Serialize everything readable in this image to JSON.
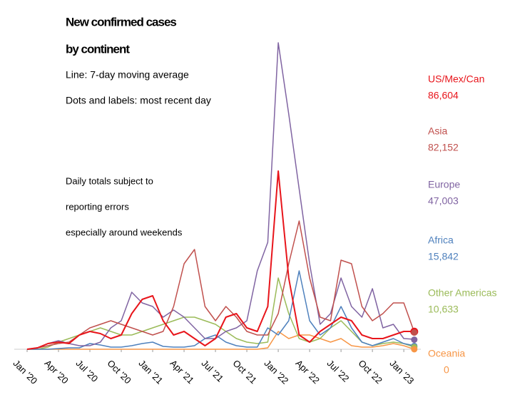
{
  "chart_data": {
    "type": "line",
    "title_lines": [
      "New confirmed cases",
      "by continent"
    ],
    "subtitle_lines": [
      "Line: 7-day moving average",
      "Dots and labels: most recent day"
    ],
    "annotation_lines": [
      "Daily totals subject to",
      "reporting errors",
      "especially around weekends"
    ],
    "x": [
      "2020-01",
      "2020-02",
      "2020-03",
      "2020-04",
      "2020-05",
      "2020-06",
      "2020-07",
      "2020-08",
      "2020-09",
      "2020-10",
      "2020-11",
      "2020-12",
      "2021-01",
      "2021-02",
      "2021-03",
      "2021-04",
      "2021-05",
      "2021-06",
      "2021-07",
      "2021-08",
      "2021-09",
      "2021-10",
      "2021-11",
      "2021-12",
      "2022-01",
      "2022-02",
      "2022-03",
      "2022-04",
      "2022-05",
      "2022-06",
      "2022-07",
      "2022-08",
      "2022-09",
      "2022-10",
      "2022-11",
      "2022-12",
      "2023-01",
      "2023-02"
    ],
    "xticks": [
      {
        "value": "2020-01",
        "label": "Jan '20"
      },
      {
        "value": "2020-04",
        "label": "Apr '20"
      },
      {
        "value": "2020-07",
        "label": "Jul '20"
      },
      {
        "value": "2020-10",
        "label": "Oct '20"
      },
      {
        "value": "2021-01",
        "label": "Jan '21"
      },
      {
        "value": "2021-04",
        "label": "Apr '21"
      },
      {
        "value": "2021-07",
        "label": "Jul '21"
      },
      {
        "value": "2021-10",
        "label": "Oct '21"
      },
      {
        "value": "2022-01",
        "label": "Jan '22"
      },
      {
        "value": "2022-04",
        "label": "Apr '22"
      },
      {
        "value": "2022-07",
        "label": "Jul '22"
      },
      {
        "value": "2022-10",
        "label": "Oct '22"
      },
      {
        "value": "2023-01",
        "label": "Jan '23"
      }
    ],
    "ylim": [
      0,
      1715000
    ],
    "series": [
      {
        "name": "US/Mex/Can",
        "color": "#e8151b",
        "latest": 86604,
        "latest_label": "86,604",
        "values": [
          0,
          7000,
          28000,
          35000,
          28000,
          70000,
          87500,
          77000,
          52500,
          70000,
          175000,
          245000,
          262500,
          140000,
          70000,
          87500,
          52500,
          17500,
          52500,
          157500,
          175000,
          105000,
          87500,
          210000,
          875000,
          350000,
          70000,
          35000,
          87500,
          122500,
          157500,
          140000,
          70000,
          52500,
          52500,
          70000,
          87500,
          87500
        ]
      },
      {
        "name": "Asia",
        "color": "#c0504d",
        "latest": 82152,
        "latest_label": "82,152",
        "values": [
          0,
          7000,
          17500,
          28000,
          35000,
          70000,
          105000,
          122500,
          140000,
          122500,
          105000,
          87500,
          70000,
          87500,
          210000,
          420000,
          490000,
          210000,
          140000,
          210000,
          157500,
          87500,
          70000,
          70000,
          175000,
          420000,
          630000,
          350000,
          157500,
          140000,
          437500,
          420000,
          210000,
          140000,
          175000,
          227500,
          227500,
          84000
        ]
      },
      {
        "name": "Europe",
        "color": "#8064a2",
        "latest": 47003,
        "latest_label": "47,003",
        "values": [
          0,
          7000,
          28000,
          42000,
          28000,
          17500,
          17500,
          35000,
          105000,
          140000,
          280000,
          227500,
          210000,
          157500,
          192500,
          157500,
          105000,
          52500,
          52500,
          87500,
          105000,
          140000,
          385000,
          525000,
          1505000,
          1155000,
          787500,
          420000,
          122500,
          175000,
          350000,
          210000,
          157500,
          297500,
          105000,
          122500,
          52500,
          49000
        ]
      },
      {
        "name": "Africa",
        "color": "#4f81bd",
        "latest": 15842,
        "latest_label": "15,842",
        "values": [
          0,
          0,
          0,
          3500,
          7000,
          7000,
          28000,
          21000,
          10500,
          10500,
          17500,
          28000,
          35000,
          14000,
          10500,
          10500,
          17500,
          52500,
          70000,
          35000,
          17500,
          10500,
          10500,
          105000,
          70000,
          140000,
          385000,
          140000,
          70000,
          105000,
          210000,
          105000,
          35000,
          17500,
          35000,
          52500,
          28000,
          17500
        ]
      },
      {
        "name": "Other Americas",
        "color": "#9bbb59",
        "latest": 10633,
        "latest_label": "10,633",
        "values": [
          0,
          0,
          10500,
          35000,
          52500,
          70000,
          87500,
          105000,
          87500,
          70000,
          70000,
          87500,
          105000,
          122500,
          140000,
          157500,
          157500,
          140000,
          122500,
          87500,
          52500,
          35000,
          28000,
          35000,
          350000,
          175000,
          52500,
          35000,
          52500,
          105000,
          140000,
          87500,
          35000,
          17500,
          28000,
          35000,
          28000,
          10500
        ]
      },
      {
        "name": "Oceania",
        "color": "#f79646",
        "latest": 0,
        "values": [
          0,
          0,
          0,
          0,
          0,
          0,
          0,
          0,
          0,
          0,
          0,
          0,
          0,
          0,
          0,
          0,
          0,
          0,
          0,
          0,
          0,
          0,
          0,
          7000,
          87500,
          52500,
          70000,
          70000,
          52500,
          35000,
          52500,
          17500,
          10500,
          10500,
          17500,
          28000,
          17500,
          0
        ]
      }
    ]
  }
}
